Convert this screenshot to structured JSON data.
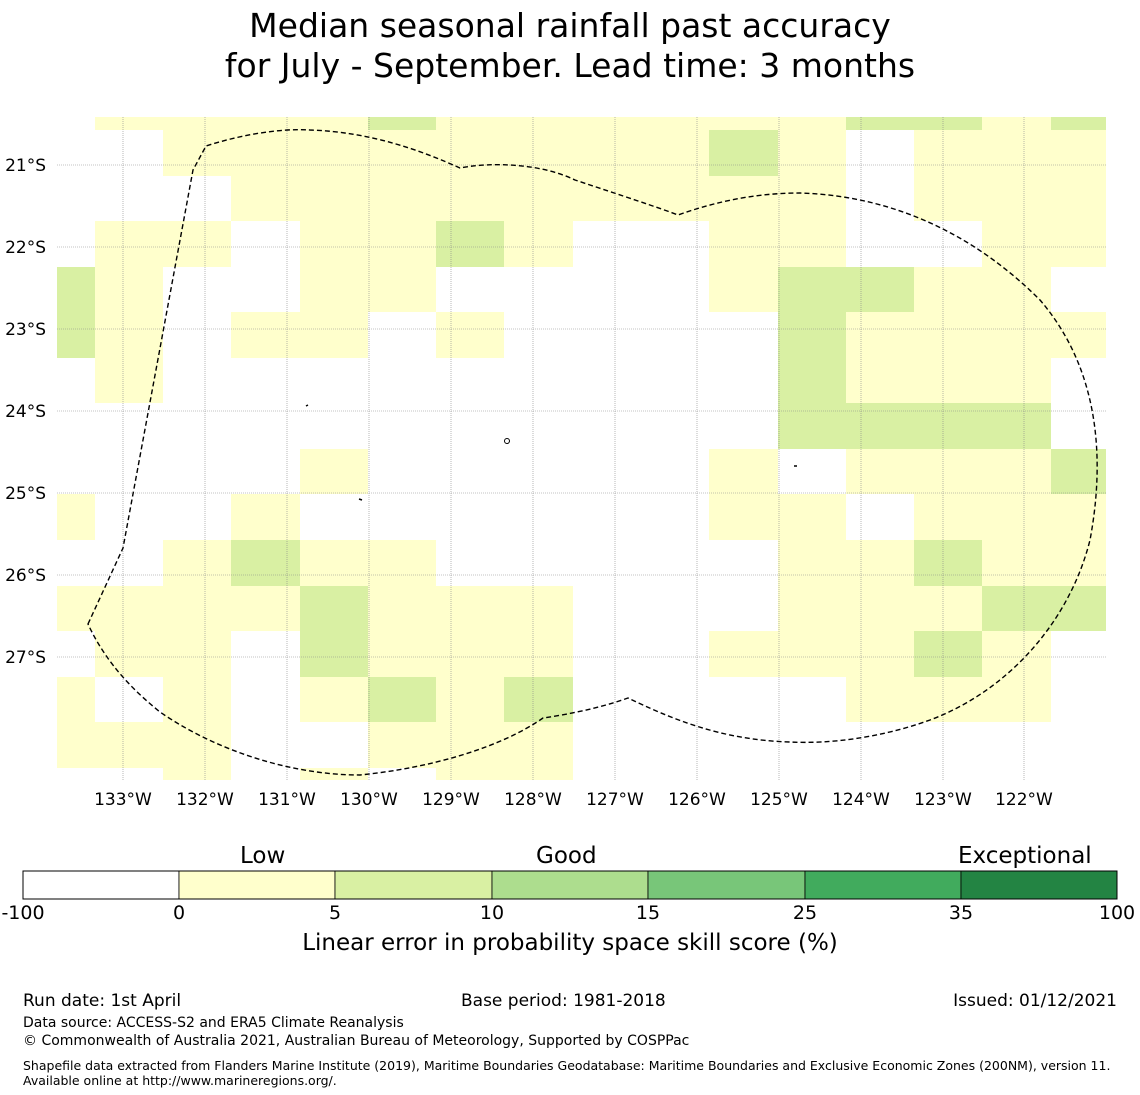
{
  "title": {
    "line1": "Median seasonal rainfall past accuracy",
    "line2": "for July - September. Lead time: 3 months"
  },
  "map": {
    "lat_labels": [
      "21°S",
      "22°S",
      "23°S",
      "24°S",
      "25°S",
      "26°S",
      "27°S"
    ],
    "lon_labels": [
      "133°W",
      "132°W",
      "131°W",
      "130°W",
      "129°W",
      "128°W",
      "127°W",
      "126°W",
      "125°W",
      "124°W",
      "123°W",
      "122°W"
    ],
    "colors": {
      "low": "#ffffcc",
      "good": "#d9f0a3",
      "eez_line": "#000000",
      "grid": "#888888"
    },
    "cells_note_levels": [
      "0-5",
      "5-10"
    ]
  },
  "colorbar": {
    "label_low": "Low",
    "label_good": "Good",
    "label_exceptional": "Exceptional",
    "ticks": [
      "-100",
      "0",
      "5",
      "10",
      "15",
      "25",
      "35",
      "100"
    ],
    "colors": [
      "#ffffff",
      "#ffffcc",
      "#d9f0a3",
      "#addd8e",
      "#78c679",
      "#41ab5d",
      "#238443"
    ],
    "axis_label": "Linear error in probability space skill score (%)"
  },
  "footer": {
    "run_date": "Run date: 1st April",
    "base_period": "Base period: 1981-2018",
    "issued": "Issued: 01/12/2021",
    "data_source": "Data source: ACCESS-S2 and ERA5 Climate Reanalysis",
    "copyright": "© Commonwealth of Australia 2021, Australian Bureau of Meteorology, Supported by COSPPac",
    "shapefile": "Shapefile data extracted from Flanders Marine Institute (2019), Maritime Boundaries Geodatabase: Maritime Boundaries and Exclusive Economic Zones (200NM), version 11. Available online at http://www.marineregions.org/."
  }
}
